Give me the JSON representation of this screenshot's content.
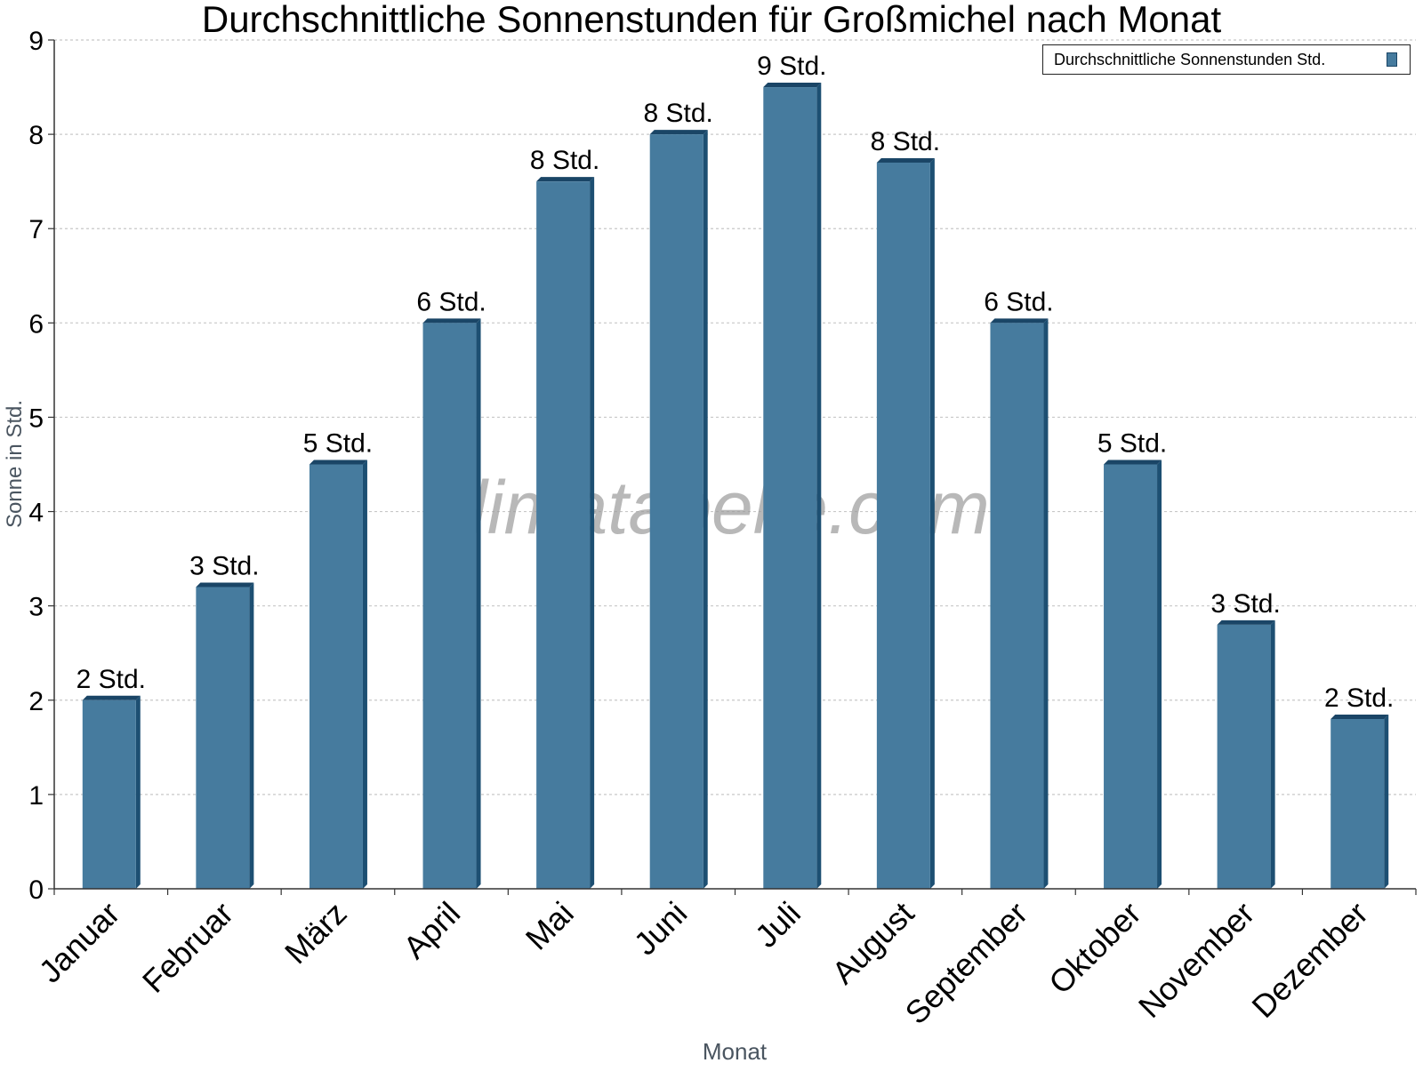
{
  "chart_data": {
    "type": "bar",
    "title": "Durchschnittliche Sonnenstunden für Großmichel nach Monat",
    "xlabel": "Monat",
    "ylabel": "Sonne in Std.",
    "ylim": [
      0,
      9
    ],
    "yticks": [
      "0",
      "1",
      "2",
      "3",
      "4",
      "5",
      "6",
      "7",
      "8",
      "9"
    ],
    "grid": true,
    "legend_position": "top-right",
    "categories": [
      "Januar",
      "Februar",
      "März",
      "April",
      "Mai",
      "Juni",
      "Juli",
      "August",
      "September",
      "Oktober",
      "November",
      "Dezember"
    ],
    "series": [
      {
        "name": "Durchschnittliche Sonnenstunden Std.",
        "values": [
          2.0,
          3.2,
          4.5,
          6.0,
          7.5,
          8.0,
          8.5,
          7.7,
          6.0,
          4.5,
          2.8,
          1.8
        ],
        "labels": [
          "2 Std.",
          "3 Std.",
          "5 Std.",
          "6 Std.",
          "8 Std.",
          "8 Std.",
          "9 Std.",
          "8 Std.",
          "6 Std.",
          "5 Std.",
          "3 Std.",
          "2 Std."
        ]
      }
    ],
    "watermark": "klimatabelle.com",
    "colors": {
      "bar": "#467b9e",
      "bar_side": "#1d4f72",
      "bar_top": "#1a4566",
      "grid": "#c8c8c8",
      "axis_label": "#4a5560"
    }
  }
}
